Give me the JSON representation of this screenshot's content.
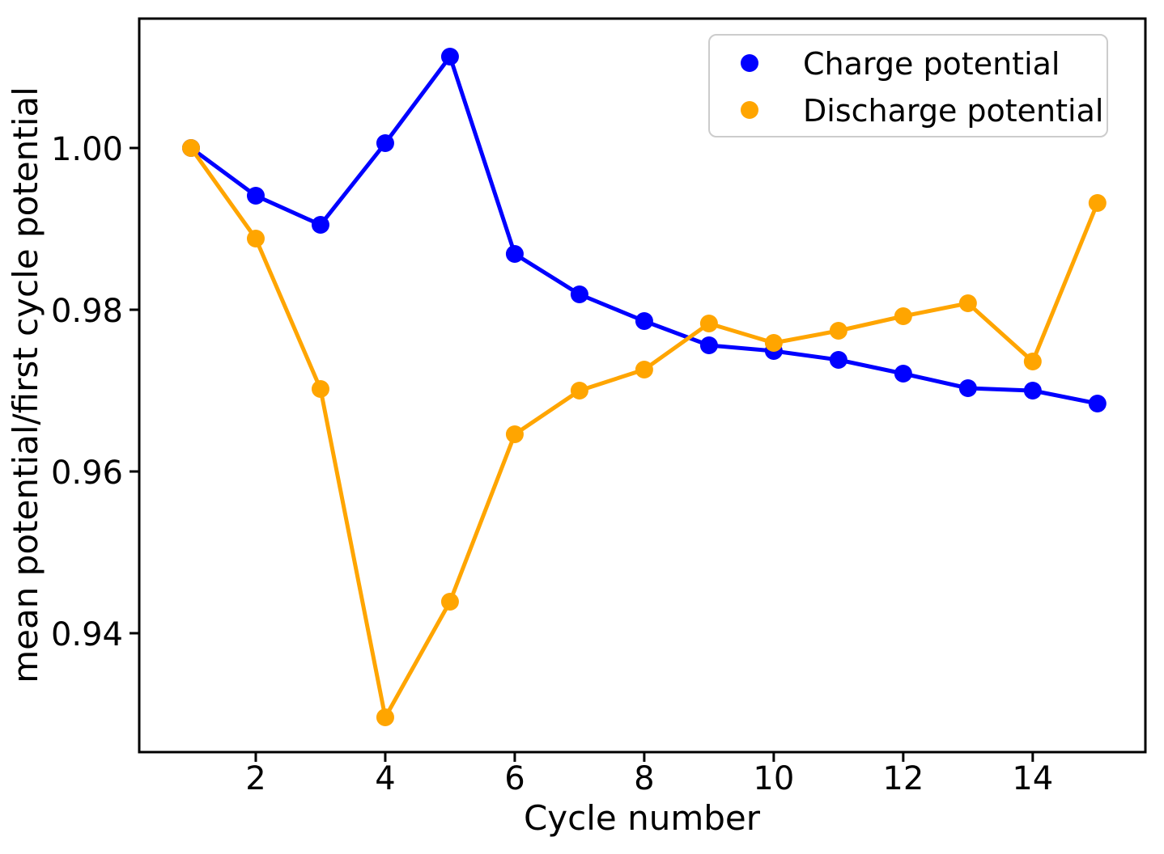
{
  "figure": {
    "background": "#ffffff",
    "axis_color": "#000000"
  },
  "chart_data": {
    "type": "line",
    "x": [
      1,
      2,
      3,
      4,
      5,
      6,
      7,
      8,
      9,
      10,
      11,
      12,
      13,
      14,
      15
    ],
    "series": [
      {
        "name": "Charge potential",
        "color": "#0000ff",
        "marker": "circle",
        "values": [
          1.0,
          0.9941,
          0.9905,
          1.0006,
          1.0113,
          0.9869,
          0.9819,
          0.9786,
          0.9756,
          0.9749,
          0.9738,
          0.9721,
          0.9703,
          0.97,
          0.9684
        ]
      },
      {
        "name": "Discharge potential",
        "color": "#ffa500",
        "marker": "circle",
        "values": [
          1.0,
          0.9888,
          0.9702,
          0.9296,
          0.9439,
          0.9646,
          0.97,
          0.9726,
          0.9783,
          0.9759,
          0.9774,
          0.9792,
          0.9808,
          0.9736,
          0.9932
        ]
      }
    ],
    "title": "",
    "xlabel": "Cycle number",
    "ylabel": "mean potential/first cycle potential",
    "xticks": {
      "values": [
        2,
        4,
        6,
        8,
        10,
        12,
        14
      ],
      "labels": [
        "2",
        "4",
        "6",
        "8",
        "10",
        "12",
        "14"
      ]
    },
    "yticks": {
      "values": [
        1.0,
        0.98,
        0.96,
        0.94
      ],
      "labels": [
        "1.00",
        "0.98",
        "0.96",
        "0.94"
      ]
    },
    "xlim": [
      0.2,
      15.74
    ],
    "ylim": [
      0.9253,
      1.016
    ],
    "grid": false,
    "legend_position": "upper right"
  }
}
